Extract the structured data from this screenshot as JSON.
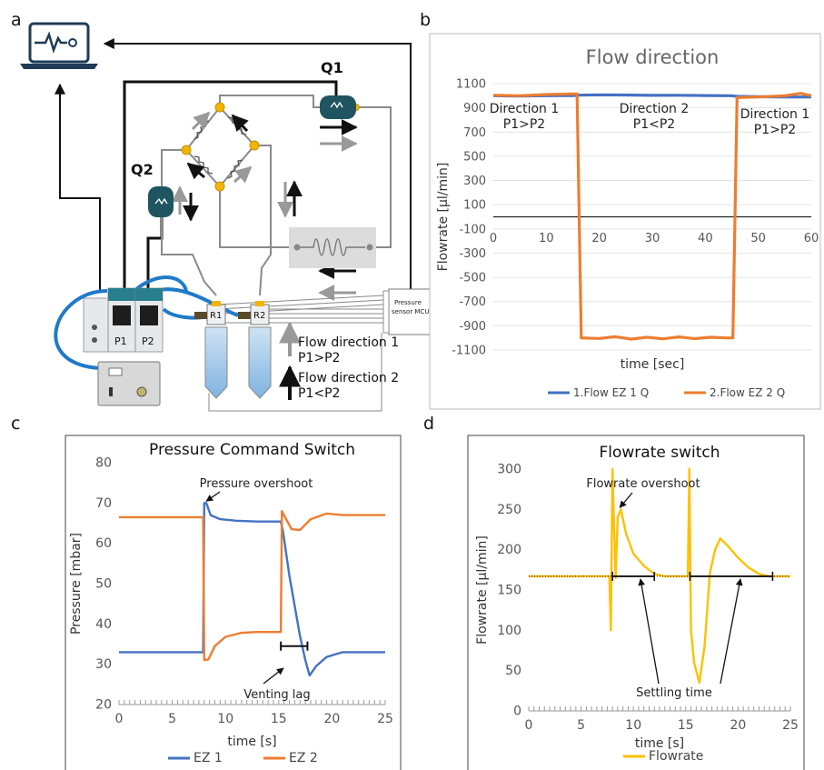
{
  "panel_letters": {
    "a": "a",
    "b": "b",
    "c": "c",
    "d": "d"
  },
  "schematic": {
    "q1": "Q1",
    "q2": "Q2",
    "p1": "P1",
    "p2": "P2",
    "r1": "R1",
    "r2": "R2",
    "sensor_line1": "Pressure",
    "sensor_line2": "sensor MCU",
    "legend_dir1_line1": "Flow direction 1",
    "legend_dir1_line2": "P1>P2",
    "legend_dir2_line1": "Flow direction 2",
    "legend_dir2_line2": "P1<P2"
  },
  "colors": {
    "series_blue": "#4472C4",
    "series_orange": "#ED7D31",
    "series_yellow": "#FFC000"
  },
  "chart_data": [
    {
      "id": "b",
      "type": "line",
      "title": "Flow direction",
      "xlabel": "time [sec]",
      "ylabel": "Flowrate [µl/min]",
      "xlim": [
        0,
        60
      ],
      "ylim": [
        -1100,
        1100
      ],
      "x_ticks": [
        "0",
        "10",
        "20",
        "30",
        "40",
        "50",
        "60"
      ],
      "y_ticks": [
        "1100",
        "900",
        "700",
        "500",
        "300",
        "100",
        "-100",
        "-300",
        "-500",
        "-700",
        "-900",
        "-1100"
      ],
      "legend_position": "bottom",
      "annotations": [
        {
          "line1": "Direction 1",
          "line2": "P1>P2"
        },
        {
          "line1": "Direction 2",
          "line2": "P1<P2"
        },
        {
          "line1": "Direction 1",
          "line2": "P1>P2"
        }
      ],
      "series": [
        {
          "name": "1.Flow EZ 1 Q",
          "color": "#4472C4",
          "x": [
            0,
            5,
            10,
            15,
            16,
            20,
            25,
            30,
            35,
            40,
            45,
            46,
            50,
            55,
            60
          ],
          "y": [
            1000,
            998,
            1000,
            1002,
            1005,
            1008,
            1006,
            1003,
            1004,
            1002,
            1000,
            995,
            992,
            990,
            990
          ]
        },
        {
          "name": "2.Flow EZ 2 Q",
          "color": "#ED7D31",
          "x": [
            0,
            5,
            10,
            15,
            15.8,
            16.6,
            20,
            23,
            26,
            29,
            32,
            35,
            38,
            41,
            44,
            45.2,
            46,
            50,
            55,
            58,
            60
          ],
          "y": [
            1005,
            1000,
            1010,
            1015,
            1015,
            -1000,
            -1005,
            -990,
            -1010,
            -995,
            -1008,
            -992,
            -1006,
            -995,
            -1000,
            -1000,
            985,
            990,
            1000,
            1020,
            1000
          ]
        }
      ]
    },
    {
      "id": "c",
      "type": "line",
      "title": "Pressure Command Switch",
      "xlabel": "time [s]",
      "ylabel": "Pressure [mbar]",
      "xlim": [
        0,
        25
      ],
      "ylim": [
        20,
        80
      ],
      "x_ticks": [
        "0",
        "5",
        "10",
        "15",
        "20",
        "25"
      ],
      "y_ticks": [
        "80",
        "70",
        "60",
        "50",
        "40",
        "30",
        "20"
      ],
      "legend_position": "bottom",
      "annotations": [
        {
          "text": "Pressure overshoot"
        },
        {
          "text": "Venting lag"
        }
      ],
      "series": [
        {
          "name": "EZ 1",
          "color": "#4472C4",
          "x": [
            0,
            4,
            7.9,
            8.0,
            8.2,
            8.6,
            9.5,
            11,
            13,
            15.2,
            15.4,
            16,
            17,
            17.5,
            17.9,
            18.5,
            19.5,
            21,
            25
          ],
          "y": [
            33,
            33,
            33,
            70,
            70,
            67,
            66,
            65.6,
            65.4,
            65.4,
            63,
            52,
            37,
            31,
            27.2,
            29.5,
            31.8,
            33,
            33
          ]
        },
        {
          "name": "EZ 2",
          "color": "#ED7D31",
          "x": [
            0,
            4,
            7.9,
            8.0,
            8.4,
            9.0,
            10,
            11.5,
            13,
            15.2,
            15.3,
            15.6,
            16.2,
            17,
            18,
            19.5,
            21,
            25
          ],
          "y": [
            66.5,
            66.5,
            66.5,
            31,
            31.2,
            34.5,
            36.8,
            37.8,
            38,
            38,
            68,
            66.5,
            63.5,
            63.3,
            66,
            67.4,
            67,
            67
          ]
        }
      ]
    },
    {
      "id": "d",
      "type": "line",
      "title": "Flowrate switch",
      "xlabel": "time [s]",
      "ylabel": "Flowrate [µl/min]",
      "xlim": [
        0,
        25
      ],
      "ylim": [
        0,
        300
      ],
      "x_ticks": [
        "0",
        "5",
        "10",
        "15",
        "20",
        "25"
      ],
      "y_ticks": [
        "300",
        "250",
        "200",
        "150",
        "100",
        "50",
        "0"
      ],
      "legend_position": "bottom",
      "annotations": [
        {
          "text": "Flowrate overshoot"
        },
        {
          "text": "Settling time"
        }
      ],
      "series": [
        {
          "name": "Flowrate",
          "color": "#FFC000",
          "x": [
            0,
            5,
            7.7,
            7.85,
            8.0,
            8.15,
            8.3,
            8.5,
            8.8,
            9.3,
            10,
            11,
            12,
            13,
            15.2,
            15.35,
            15.5,
            15.8,
            16.3,
            16.8,
            17.3,
            17.8,
            18.3,
            19,
            20,
            21,
            22,
            23,
            25
          ],
          "y": [
            167,
            167,
            167,
            100,
            300,
            230,
            165,
            240,
            250,
            220,
            195,
            180,
            170,
            167,
            167,
            300,
            100,
            60,
            35,
            80,
            170,
            200,
            214,
            205,
            190,
            178,
            170,
            167,
            167
          ]
        }
      ],
      "settling_segments": [
        {
          "x": [
            8.0,
            12.0
          ],
          "y": 167
        },
        {
          "x": [
            15.4,
            23.3
          ],
          "y": 167
        }
      ]
    }
  ]
}
